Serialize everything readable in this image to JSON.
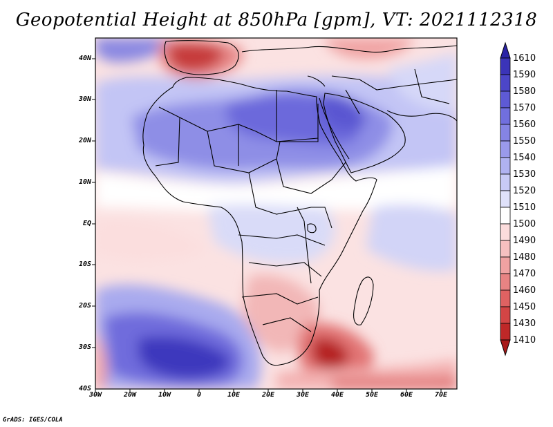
{
  "title": "Geopotential Height at 850hPa [gpm], VT: 2021112318",
  "credit": "GrADS: IGES/COLA",
  "map": {
    "variable": "Geopotential Height",
    "level": "850hPa",
    "units": "gpm",
    "valid_time": "2021112318",
    "region": "Africa",
    "lat_labels": [
      "40N",
      "30N",
      "20N",
      "10N",
      "EQ",
      "10S",
      "20S",
      "30S",
      "40S"
    ],
    "lon_labels": [
      "30W",
      "20W",
      "10W",
      "0",
      "10E",
      "20E",
      "30E",
      "40E",
      "50E",
      "60E",
      "70E"
    ]
  },
  "colorbar": {
    "levels": [
      "1610",
      "1590",
      "1580",
      "1570",
      "1560",
      "1550",
      "1540",
      "1530",
      "1520",
      "1510",
      "1500",
      "1490",
      "1480",
      "1470",
      "1460",
      "1450",
      "1430",
      "1410"
    ],
    "colors": [
      "#2a23a6",
      "#3b34b8",
      "#4c46c8",
      "#5e5ad5",
      "#716fde",
      "#8584e4",
      "#9a9aeb",
      "#b0b2f1",
      "#c8caf6",
      "#dfe1fa",
      "#ffffff",
      "#fbdcdc",
      "#f6c0c0",
      "#f0a2a2",
      "#e88383",
      "#df6262",
      "#d34545",
      "#bf2828",
      "#a81a1a"
    ]
  }
}
